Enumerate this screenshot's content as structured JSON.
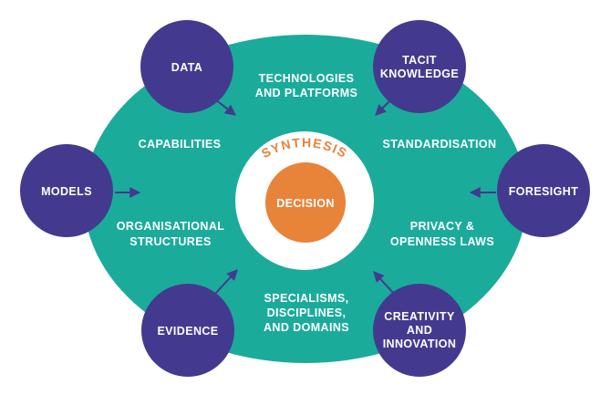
{
  "colors": {
    "ring": "#1bab9b",
    "node": "#433a8f",
    "arrow": "#433a8f",
    "decision": "#e8833a",
    "synthesis_text": "#e8833a",
    "inner_disc": "#ffffff",
    "label": "#ffffff"
  },
  "center": {
    "synthesis": "SYNTHESIS",
    "decision": "DECISION"
  },
  "zones": {
    "technologies": [
      "TECHNOLOGIES",
      "AND PLATFORMS"
    ],
    "capabilities": [
      "CAPABILITIES"
    ],
    "standardisation": [
      "STANDARDISATION"
    ],
    "organisational": [
      "ORGANISATIONAL",
      "STRUCTURES"
    ],
    "privacy": [
      "PRIVACY &",
      "OPENNESS LAWS"
    ],
    "specialisms": [
      "SPECIALISMS,",
      "DISCIPLINES,",
      "AND DOMAINS"
    ]
  },
  "nodes": {
    "data": [
      "DATA"
    ],
    "tacit": [
      "TACIT",
      "KNOWLEDGE"
    ],
    "models": [
      "MODELS"
    ],
    "foresight": [
      "FORESIGHT"
    ],
    "evidence": [
      "EVIDENCE"
    ],
    "creativity": [
      "CREATIVITY",
      "AND",
      "INNOVATION"
    ]
  }
}
